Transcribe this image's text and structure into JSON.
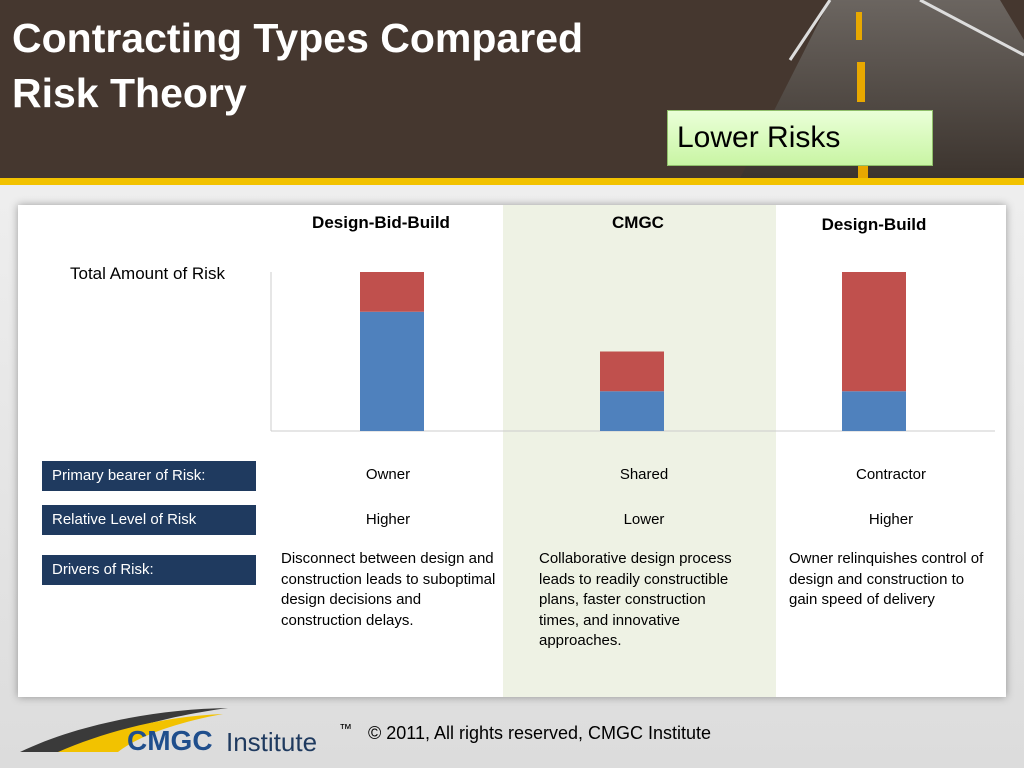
{
  "header": {
    "title_lines": [
      "Contracting Types Compared",
      "Risk Theory"
    ],
    "callout": "Lower Risks"
  },
  "chart_data": {
    "type": "stacked-bar",
    "y_label": "Total Amount of Risk",
    "categories": [
      "Design-Bid-Build",
      "CMGC",
      "Design-Build"
    ],
    "series": [
      {
        "color": "#4f81bd",
        "values": [
          3,
          1,
          1
        ]
      },
      {
        "color": "#c0504d",
        "values": [
          1,
          1,
          3
        ]
      }
    ],
    "ylim": [
      0,
      4
    ]
  },
  "table": {
    "rows": [
      {
        "label": "Primary bearer of Risk:",
        "cells": [
          "Owner",
          "Shared",
          "Contractor"
        ]
      },
      {
        "label": "Relative Level of Risk",
        "cells": [
          "Higher",
          "Lower",
          "Higher"
        ]
      },
      {
        "label": "Drivers of Risk:",
        "cells": [
          "Disconnect between design and construction leads to suboptimal design decisions and construction delays.",
          "Collaborative design process leads to readily constructible plans, faster construction times, and innovative approaches.",
          "Owner relinquishes control of design and construction to gain speed of delivery"
        ]
      }
    ]
  },
  "footer": {
    "logo_main": "CMGC",
    "logo_sub": "Institute",
    "trademark": "™",
    "copyright": "© 2011, All rights reserved, CMGC Institute"
  }
}
